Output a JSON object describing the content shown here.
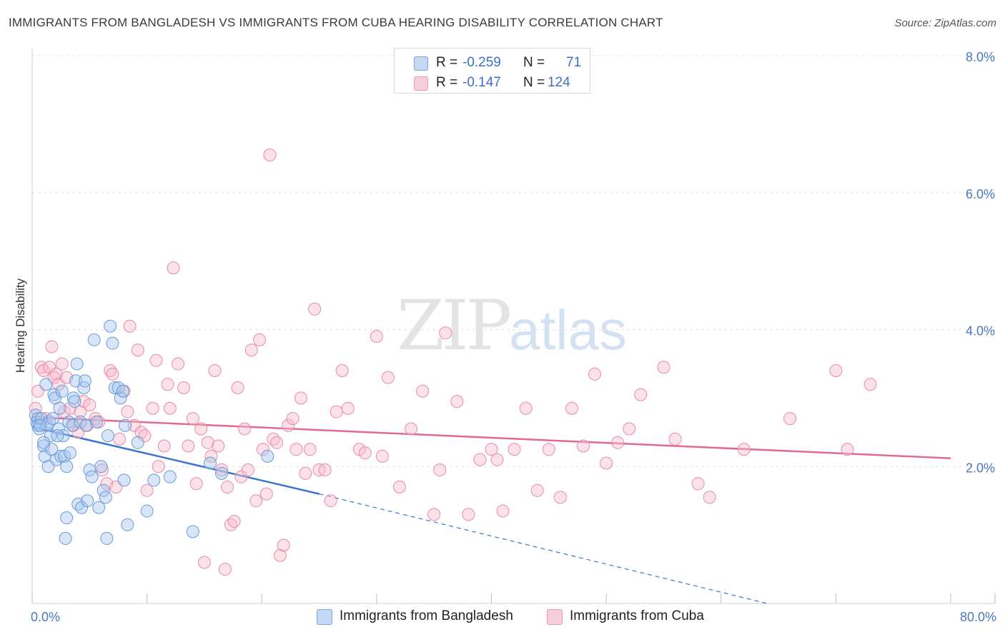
{
  "title": "IMMIGRANTS FROM BANGLADESH VS IMMIGRANTS FROM CUBA HEARING DISABILITY CORRELATION CHART",
  "source": "Source: ZipAtlas.com",
  "watermark": {
    "zip": "ZIP",
    "atlas": "atlas"
  },
  "legend": {
    "rows": [
      {
        "r_label": "R =",
        "r_value": "-0.259",
        "n_label": "N =",
        "n_value": "71",
        "color": "#a9c5ee"
      },
      {
        "r_label": "R =",
        "r_value": "-0.147",
        "n_label": "N =",
        "n_value": "124",
        "color": "#f6bccd"
      }
    ]
  },
  "bottom_legend": [
    {
      "label": "Immigrants from Bangladesh",
      "color": "#a9c5ee"
    },
    {
      "label": "Immigrants from Cuba",
      "color": "#f6bccd"
    }
  ],
  "chart_data": {
    "type": "scatter",
    "title": "IMMIGRANTS FROM BANGLADESH VS IMMIGRANTS FROM CUBA HEARING DISABILITY CORRELATION CHART",
    "xlabel": "",
    "ylabel": "Hearing Disability",
    "xlim": [
      0,
      80
    ],
    "ylim": [
      0,
      8.0
    ],
    "x_tick_labels": [
      "0.0%",
      "80.0%"
    ],
    "y_ticks": [
      2.0,
      4.0,
      6.0,
      8.0
    ],
    "y_tick_labels": [
      "2.0%",
      "4.0%",
      "6.0%",
      "8.0%"
    ],
    "grid": true,
    "series": [
      {
        "name": "Immigrants from Bangladesh",
        "color": "#a9c5ee",
        "stroke": "#6a9ad8",
        "trend": {
          "x0": 0,
          "y0": 2.58,
          "x1": 25,
          "y1": 1.6,
          "dash_to_x": 64,
          "dash_to_y": 0.0,
          "color": "#3a75d0"
        },
        "points": [
          [
            0.3,
            2.75
          ],
          [
            0.4,
            2.65
          ],
          [
            0.5,
            2.7
          ],
          [
            0.5,
            2.6
          ],
          [
            0.6,
            2.55
          ],
          [
            0.8,
            2.7
          ],
          [
            1.0,
            2.3
          ],
          [
            1.1,
            2.15
          ],
          [
            1.2,
            3.2
          ],
          [
            1.3,
            2.6
          ],
          [
            1.5,
            2.65
          ],
          [
            1.6,
            2.45
          ],
          [
            1.7,
            2.25
          ],
          [
            1.8,
            2.7
          ],
          [
            1.9,
            3.05
          ],
          [
            2.0,
            3.0
          ],
          [
            2.1,
            2.1
          ],
          [
            2.3,
            2.55
          ],
          [
            2.4,
            2.85
          ],
          [
            2.5,
            2.15
          ],
          [
            2.6,
            3.1
          ],
          [
            2.7,
            2.45
          ],
          [
            2.8,
            2.15
          ],
          [
            3.0,
            2.0
          ],
          [
            3.2,
            2.65
          ],
          [
            3.3,
            2.2
          ],
          [
            3.5,
            2.6
          ],
          [
            3.6,
            3.0
          ],
          [
            3.7,
            2.95
          ],
          [
            3.8,
            3.25
          ],
          [
            3.9,
            3.5
          ],
          [
            4.0,
            1.45
          ],
          [
            4.2,
            2.65
          ],
          [
            4.3,
            1.4
          ],
          [
            4.5,
            3.15
          ],
          [
            4.6,
            3.25
          ],
          [
            4.7,
            2.6
          ],
          [
            4.8,
            1.5
          ],
          [
            5.0,
            1.95
          ],
          [
            5.2,
            1.85
          ],
          [
            5.4,
            3.85
          ],
          [
            5.6,
            2.65
          ],
          [
            5.8,
            1.4
          ],
          [
            6.0,
            2.0
          ],
          [
            6.2,
            1.65
          ],
          [
            6.4,
            1.55
          ],
          [
            6.6,
            2.45
          ],
          [
            6.8,
            4.05
          ],
          [
            7.0,
            3.8
          ],
          [
            7.2,
            3.15
          ],
          [
            7.5,
            3.15
          ],
          [
            7.7,
            3.0
          ],
          [
            7.9,
            3.1
          ],
          [
            8.0,
            1.8
          ],
          [
            8.1,
            2.6
          ],
          [
            8.3,
            1.15
          ],
          [
            9.2,
            2.35
          ],
          [
            10.0,
            1.35
          ],
          [
            10.6,
            1.8
          ],
          [
            3.0,
            1.25
          ],
          [
            2.9,
            0.95
          ],
          [
            6.5,
            0.95
          ],
          [
            12.0,
            1.85
          ],
          [
            14.0,
            1.05
          ],
          [
            15.5,
            2.05
          ],
          [
            16.5,
            1.9
          ],
          [
            20.5,
            2.15
          ],
          [
            1.0,
            2.35
          ],
          [
            0.7,
            2.6
          ],
          [
            1.4,
            2.0
          ],
          [
            2.2,
            2.45
          ]
        ]
      },
      {
        "name": "Immigrants from Cuba",
        "color": "#f6bccd",
        "stroke": "#e98aa8",
        "trend": {
          "x0": 0,
          "y0": 2.72,
          "x1": 80,
          "y1": 2.12,
          "color": "#e06b90"
        },
        "points": [
          [
            0.3,
            2.85
          ],
          [
            0.5,
            3.1
          ],
          [
            0.8,
            3.45
          ],
          [
            1.0,
            3.4
          ],
          [
            1.2,
            2.7
          ],
          [
            1.5,
            3.45
          ],
          [
            1.7,
            3.75
          ],
          [
            1.9,
            3.3
          ],
          [
            2.1,
            3.35
          ],
          [
            2.3,
            3.2
          ],
          [
            2.6,
            3.5
          ],
          [
            2.8,
            2.8
          ],
          [
            3.0,
            3.3
          ],
          [
            3.3,
            2.85
          ],
          [
            3.6,
            2.6
          ],
          [
            4.0,
            2.5
          ],
          [
            4.2,
            2.8
          ],
          [
            4.5,
            2.95
          ],
          [
            4.8,
            2.6
          ],
          [
            5.0,
            2.9
          ],
          [
            5.5,
            2.7
          ],
          [
            5.8,
            2.65
          ],
          [
            6.1,
            1.95
          ],
          [
            6.5,
            1.75
          ],
          [
            6.8,
            3.4
          ],
          [
            7.0,
            3.35
          ],
          [
            7.3,
            1.7
          ],
          [
            7.6,
            2.4
          ],
          [
            8.0,
            3.1
          ],
          [
            8.3,
            2.8
          ],
          [
            8.5,
            4.05
          ],
          [
            8.9,
            2.6
          ],
          [
            9.2,
            3.7
          ],
          [
            9.5,
            2.5
          ],
          [
            9.8,
            2.45
          ],
          [
            10.0,
            1.65
          ],
          [
            10.5,
            2.85
          ],
          [
            10.8,
            3.55
          ],
          [
            11.0,
            2.0
          ],
          [
            11.5,
            2.3
          ],
          [
            11.8,
            3.2
          ],
          [
            12.0,
            2.85
          ],
          [
            12.3,
            4.9
          ],
          [
            12.7,
            3.5
          ],
          [
            13.2,
            3.15
          ],
          [
            13.6,
            2.3
          ],
          [
            14.0,
            2.7
          ],
          [
            14.3,
            1.75
          ],
          [
            14.7,
            2.55
          ],
          [
            15.0,
            0.6
          ],
          [
            15.3,
            2.35
          ],
          [
            15.6,
            2.15
          ],
          [
            15.9,
            3.4
          ],
          [
            16.2,
            2.3
          ],
          [
            16.5,
            1.95
          ],
          [
            16.8,
            0.5
          ],
          [
            17.0,
            1.7
          ],
          [
            17.3,
            1.15
          ],
          [
            17.6,
            1.2
          ],
          [
            17.9,
            3.15
          ],
          [
            18.2,
            1.85
          ],
          [
            18.5,
            2.55
          ],
          [
            18.8,
            1.95
          ],
          [
            19.1,
            3.7
          ],
          [
            19.5,
            1.5
          ],
          [
            19.8,
            3.85
          ],
          [
            20.1,
            2.25
          ],
          [
            20.4,
            1.6
          ],
          [
            20.7,
            6.55
          ],
          [
            21.0,
            2.4
          ],
          [
            21.3,
            2.35
          ],
          [
            21.6,
            0.7
          ],
          [
            21.9,
            0.85
          ],
          [
            22.3,
            2.6
          ],
          [
            22.7,
            2.7
          ],
          [
            23.0,
            2.25
          ],
          [
            23.4,
            3.0
          ],
          [
            23.8,
            1.9
          ],
          [
            24.2,
            2.25
          ],
          [
            24.6,
            4.3
          ],
          [
            25.0,
            1.95
          ],
          [
            25.5,
            1.95
          ],
          [
            26.0,
            1.5
          ],
          [
            26.5,
            2.8
          ],
          [
            27.0,
            3.4
          ],
          [
            27.5,
            2.85
          ],
          [
            28.5,
            2.25
          ],
          [
            29.0,
            2.2
          ],
          [
            30.0,
            3.9
          ],
          [
            30.5,
            2.15
          ],
          [
            31.0,
            3.3
          ],
          [
            32.0,
            1.7
          ],
          [
            33.0,
            2.55
          ],
          [
            34.0,
            3.1
          ],
          [
            35.0,
            1.3
          ],
          [
            35.5,
            1.95
          ],
          [
            36.0,
            3.95
          ],
          [
            37.0,
            2.95
          ],
          [
            38.0,
            1.3
          ],
          [
            39.0,
            2.1
          ],
          [
            40.0,
            2.25
          ],
          [
            40.5,
            2.1
          ],
          [
            41.0,
            1.35
          ],
          [
            42.0,
            2.25
          ],
          [
            43.0,
            2.85
          ],
          [
            44.0,
            1.65
          ],
          [
            45.0,
            2.25
          ],
          [
            46.0,
            1.55
          ],
          [
            47.0,
            2.85
          ],
          [
            48.0,
            2.3
          ],
          [
            49.0,
            3.35
          ],
          [
            50.0,
            2.05
          ],
          [
            51.0,
            2.35
          ],
          [
            52.0,
            2.55
          ],
          [
            53.0,
            3.05
          ],
          [
            55.0,
            3.45
          ],
          [
            56.0,
            2.4
          ],
          [
            58.0,
            1.75
          ],
          [
            59.0,
            1.55
          ],
          [
            62.0,
            2.25
          ],
          [
            66.0,
            2.7
          ],
          [
            70.0,
            3.4
          ],
          [
            71.0,
            2.25
          ],
          [
            73.0,
            3.2
          ]
        ]
      }
    ]
  }
}
